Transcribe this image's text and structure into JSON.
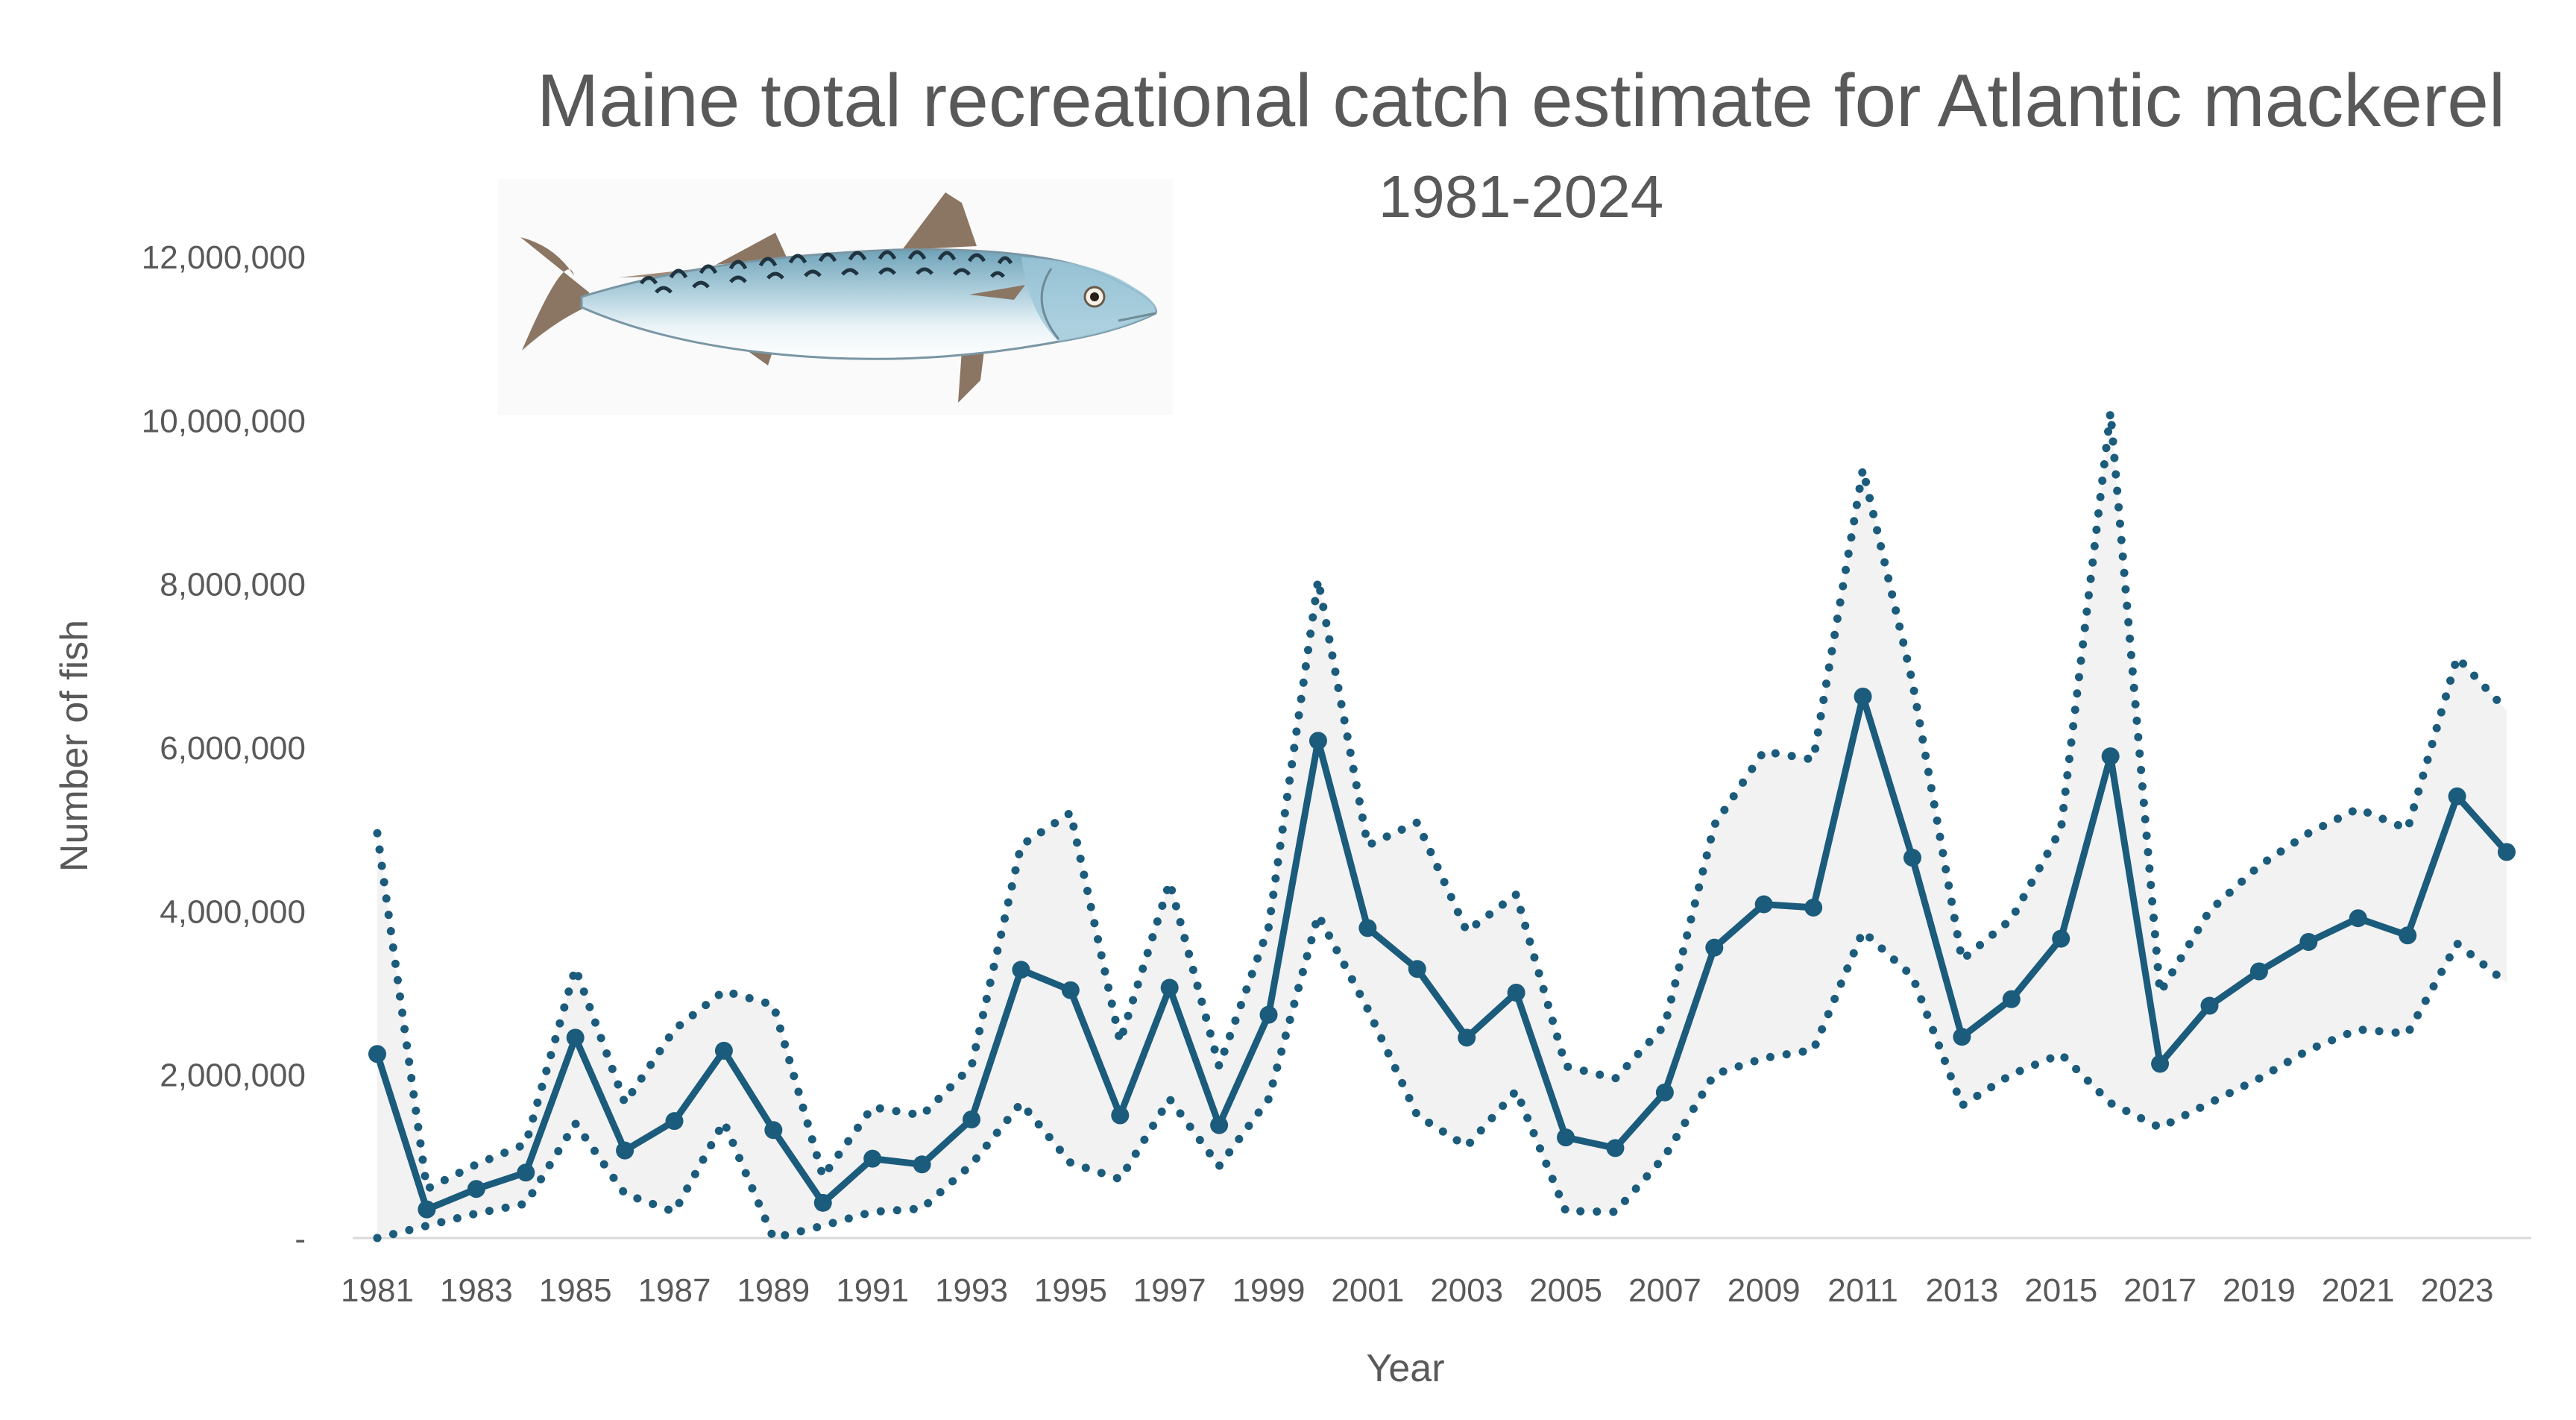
{
  "chart_data": {
    "type": "line",
    "title": "Maine total recreational catch estimate for Atlantic mackerel",
    "subtitle": "1981-2024",
    "xlabel": "Year",
    "ylabel": "Number of fish",
    "ylim": [
      0,
      12000000
    ],
    "y_ticks": [
      {
        "value": 0,
        "label": "-"
      },
      {
        "value": 2000000,
        "label": "2,000,000"
      },
      {
        "value": 4000000,
        "label": "4,000,000"
      },
      {
        "value": 6000000,
        "label": "6,000,000"
      },
      {
        "value": 8000000,
        "label": "8,000,000"
      },
      {
        "value": 10000000,
        "label": "10,000,000"
      },
      {
        "value": 12000000,
        "label": "12,000,000"
      }
    ],
    "x_tick_labels": [
      "1981",
      "1983",
      "1985",
      "1987",
      "1989",
      "1991",
      "1993",
      "1995",
      "1997",
      "1999",
      "2001",
      "2003",
      "2005",
      "2007",
      "2009",
      "2011",
      "2013",
      "2015",
      "2017",
      "2019",
      "2021",
      "2023"
    ],
    "x": [
      1981,
      1982,
      1983,
      1984,
      1985,
      1986,
      1987,
      1988,
      1989,
      1990,
      1991,
      1992,
      1993,
      1994,
      1995,
      1996,
      1997,
      1998,
      1999,
      2000,
      2001,
      2002,
      2003,
      2004,
      2005,
      2006,
      2007,
      2008,
      2009,
      2010,
      2011,
      2012,
      2013,
      2014,
      2015,
      2016,
      2017,
      2018,
      2019,
      2020,
      2021,
      2022,
      2023,
      2024
    ],
    "series": [
      {
        "values": [
          2250000,
          350000,
          600000,
          800000,
          2450000,
          1070000,
          1430000,
          2290000,
          1320000,
          430000,
          970000,
          900000,
          1450000,
          3280000,
          3030000,
          1500000,
          3060000,
          1380000,
          2730000,
          6080000,
          3790000,
          3290000,
          2450000,
          3000000,
          1230000,
          1100000,
          1780000,
          3550000,
          4080000,
          4040000,
          6620000,
          4650000,
          2460000,
          2920000,
          3660000,
          5890000,
          2130000,
          2840000,
          3260000,
          3620000,
          3910000,
          3700000,
          5400000,
          4720000
        ]
      },
      {
        "values": [
          4950000,
          600000,
          900000,
          1150000,
          3300000,
          1650000,
          2550000,
          3020000,
          2850000,
          750000,
          1600000,
          1500000,
          2100000,
          4800000,
          5200000,
          2400000,
          4350000,
          2100000,
          3800000,
          8050000,
          4800000,
          5080000,
          3750000,
          4200000,
          2100000,
          1950000,
          2600000,
          5050000,
          5950000,
          5850000,
          9400000,
          6800000,
          3400000,
          3900000,
          5000000,
          10100000,
          3000000,
          4000000,
          4550000,
          4950000,
          5250000,
          5000000,
          7100000,
          6450000
        ]
      },
      {
        "values": [
          0,
          150000,
          300000,
          420000,
          1400000,
          540000,
          320000,
          1420000,
          0,
          150000,
          320000,
          360000,
          900000,
          1650000,
          920000,
          720000,
          1700000,
          880000,
          1700000,
          3950000,
          2800000,
          1500000,
          1120000,
          1800000,
          330000,
          320000,
          1000000,
          2000000,
          2200000,
          2300000,
          3750000,
          3200000,
          1620000,
          2000000,
          2250000,
          1650000,
          1350000,
          1650000,
          1950000,
          2300000,
          2550000,
          2500000,
          3600000,
          3120000
        ]
      }
    ],
    "colors": {
      "main": "#1b5b7c",
      "band": "#f2f2f2",
      "axis": "#d9d9d9",
      "text": "#595959"
    },
    "grid": false,
    "legend": "none"
  }
}
